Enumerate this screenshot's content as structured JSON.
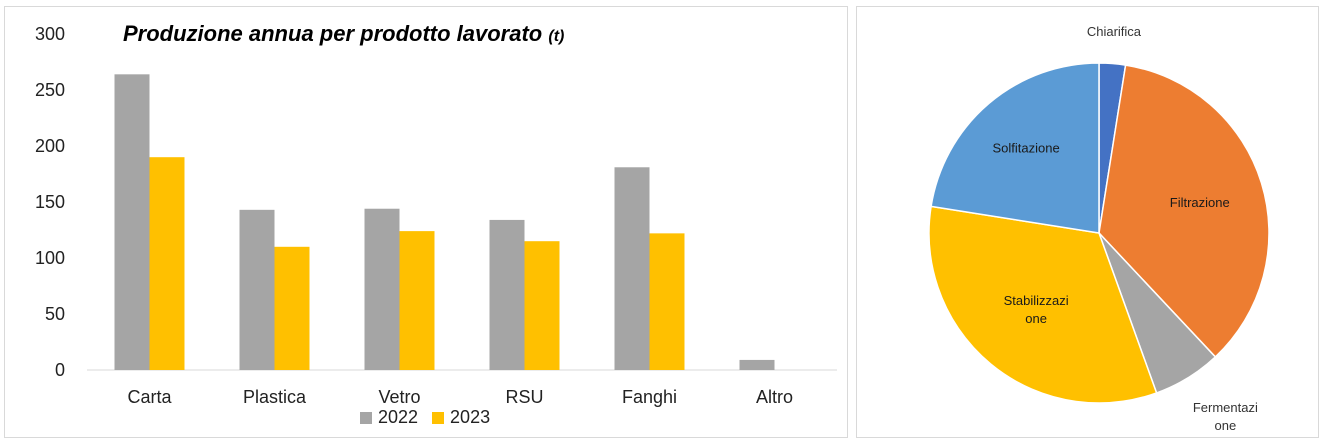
{
  "chart_data": [
    {
      "type": "bar",
      "title": "Produzione annua per prodotto lavorato",
      "title_unit": "(t)",
      "categories": [
        "Carta",
        "Plastica",
        "Vetro",
        "RSU",
        "Fanghi",
        "Altro"
      ],
      "series": [
        {
          "name": "2022",
          "color": "#a5a5a5",
          "values": [
            264,
            143,
            144,
            134,
            181,
            9
          ]
        },
        {
          "name": "2023",
          "color": "#ffc000",
          "values": [
            190,
            110,
            124,
            115,
            122,
            0
          ]
        }
      ],
      "ylim": [
        0,
        300
      ],
      "yticks": [
        "0",
        "50",
        "100",
        "150",
        "200",
        "250",
        "300"
      ],
      "grid": false,
      "legend": "bottom"
    },
    {
      "type": "pie",
      "slices": [
        {
          "label": "Chiarifica",
          "value": 2.5,
          "color": "#4472c4"
        },
        {
          "label": "Filtrazione",
          "value": 35.5,
          "color": "#ed7d31"
        },
        {
          "label": "Fermentazione",
          "display_lines": [
            "Fermentazi",
            "one"
          ],
          "value": 6.5,
          "color": "#a5a5a5"
        },
        {
          "label": "Stabilizzazione",
          "display_lines": [
            "Stabilizzazi",
            "one"
          ],
          "value": 33.0,
          "color": "#ffc000"
        },
        {
          "label": "Solfitazione",
          "value": 22.5,
          "color": "#5b9bd5"
        }
      ]
    }
  ]
}
